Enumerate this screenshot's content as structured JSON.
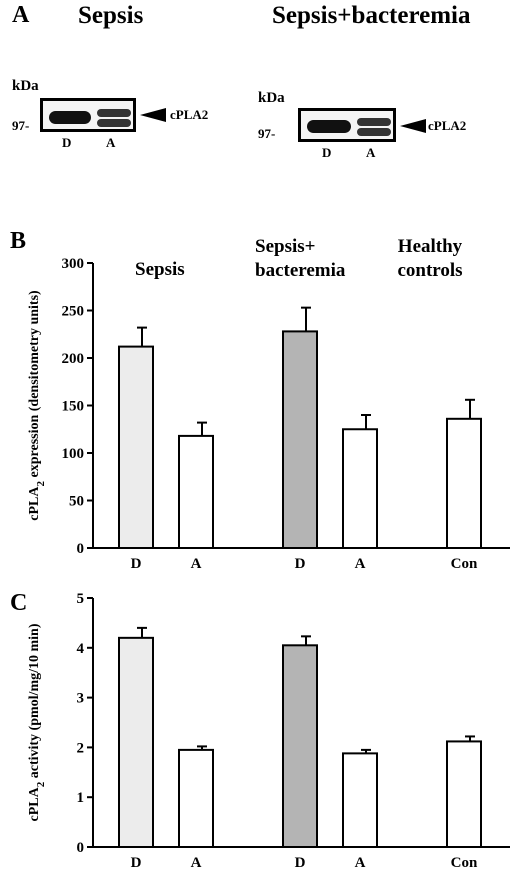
{
  "panelA": {
    "letter": "A",
    "groups": [
      {
        "title": "Sepsis",
        "kda": "kDa",
        "marker": "97-",
        "band": "cPLA2",
        "lanes": [
          "D",
          "A"
        ]
      },
      {
        "title": "Sepsis+bacteremia",
        "kda": "kDa",
        "marker": "97-",
        "band": "cPLA2",
        "lanes": [
          "D",
          "A"
        ]
      }
    ]
  },
  "colors": {
    "light_bar": "#ececec",
    "dark_bar": "#b4b4b4",
    "open_bar": "#ffffff"
  },
  "chart_data": [
    {
      "panel": "B",
      "type": "bar",
      "ylabel": "cPLA2 expression (densitometry units)",
      "ylim": [
        0,
        300
      ],
      "yticks": [
        0,
        50,
        100,
        150,
        200,
        250,
        300
      ],
      "categories": [
        "D",
        "A",
        "D",
        "A",
        "Con"
      ],
      "values": [
        212,
        118,
        228,
        125,
        136
      ],
      "errors": [
        20,
        14,
        25,
        15,
        20
      ],
      "fills": [
        "light",
        "open",
        "dark",
        "open",
        "open"
      ],
      "group_labels": [
        {
          "lines": [
            "Sepsis"
          ]
        },
        {
          "lines": [
            "Sepsis+",
            "bacteremia"
          ]
        },
        {
          "lines": [
            "Healthy",
            "controls"
          ]
        }
      ]
    },
    {
      "panel": "C",
      "type": "bar",
      "ylabel": "cPLA2 activity (pmol/mg/10 min)",
      "ylim": [
        0,
        5
      ],
      "yticks": [
        0,
        1,
        2,
        3,
        4,
        5
      ],
      "categories": [
        "D",
        "A",
        "D",
        "A",
        "Con"
      ],
      "values": [
        4.2,
        1.95,
        4.05,
        1.88,
        2.12
      ],
      "errors": [
        0.2,
        0.07,
        0.18,
        0.07,
        0.1
      ],
      "fills": [
        "light",
        "open",
        "dark",
        "open",
        "open"
      ]
    }
  ]
}
